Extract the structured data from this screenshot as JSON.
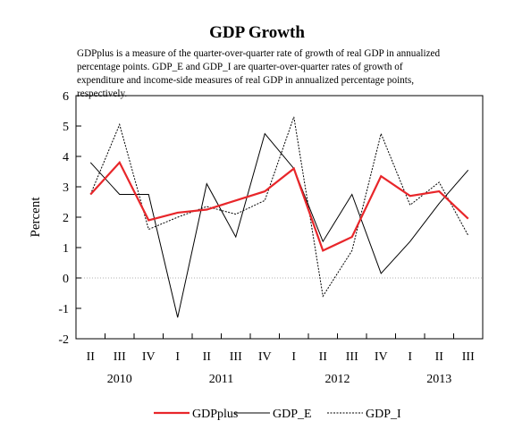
{
  "chart_data": {
    "type": "line",
    "title": "GDP Growth",
    "subtitle": "GDPplus is a measure of the quarter-over-quarter rate of growth of real GDP in annualized percentage points. GDP_E and GDP_I are quarter-over-quarter rates of growth of expenditure and income-side measures of real GDP in annualized percentage points, respectively.",
    "ylabel": "Percent",
    "ylim": [
      -2,
      6
    ],
    "yticks": [
      "-2",
      "-1",
      "0",
      "1",
      "2",
      "3",
      "4",
      "5",
      "6"
    ],
    "categories": [
      "II",
      "III",
      "IV",
      "I",
      "II",
      "III",
      "IV",
      "I",
      "II",
      "III",
      "IV",
      "I",
      "II",
      "III"
    ],
    "years": [
      {
        "label": "2010",
        "start": 0,
        "end": 2
      },
      {
        "label": "2011",
        "start": 3,
        "end": 6
      },
      {
        "label": "2012",
        "start": 7,
        "end": 10
      },
      {
        "label": "2013",
        "start": 11,
        "end": 13
      }
    ],
    "grid": false,
    "zero_line": true,
    "legend_position": "bottom",
    "series": [
      {
        "name": "GDPplus",
        "style": "solid",
        "color": "#e8262a",
        "values": [
          2.75,
          3.8,
          1.9,
          2.15,
          2.25,
          2.55,
          2.85,
          3.6,
          0.9,
          1.35,
          3.35,
          2.7,
          2.85,
          1.95
        ]
      },
      {
        "name": "GDP_E",
        "style": "solid",
        "color": "#000000",
        "values": [
          3.8,
          2.75,
          2.75,
          -1.3,
          3.1,
          1.35,
          4.75,
          3.6,
          1.2,
          2.75,
          0.15,
          1.2,
          2.45,
          3.55
        ]
      },
      {
        "name": "GDP_I",
        "style": "dotted",
        "color": "#000000",
        "values": [
          2.75,
          5.05,
          1.6,
          2.0,
          2.35,
          2.1,
          2.55,
          5.3,
          -0.6,
          0.9,
          4.75,
          2.4,
          3.15,
          1.4
        ]
      }
    ]
  }
}
